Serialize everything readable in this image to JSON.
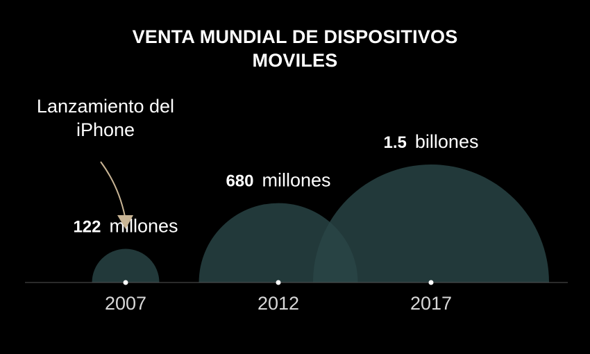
{
  "title_lines": [
    "VENTA MUNDIAL DE DISPOSITIVOS",
    "MOVILES"
  ],
  "annotation": {
    "lines": [
      "Lanzamiento del",
      "iPhone"
    ],
    "target_year": "2007"
  },
  "colors": {
    "background": "#000000",
    "bubble_fill": "#2a4547",
    "arrow": "#c9b595",
    "baseline": "#555555",
    "text": "#ffffff"
  },
  "chart_data": {
    "type": "bubble-timeline",
    "title": "VENTA MUNDIAL DE DISPOSITIVOS MOVILES",
    "categories": [
      "2007",
      "2012",
      "2017"
    ],
    "values": [
      122,
      680,
      1500
    ],
    "value_unit": "millones",
    "labels": [
      {
        "number": "122",
        "unit": "millones"
      },
      {
        "number": "680",
        "unit": "millones"
      },
      {
        "number": "1.5",
        "unit": "billones"
      }
    ],
    "grid": false,
    "legend": "none"
  }
}
